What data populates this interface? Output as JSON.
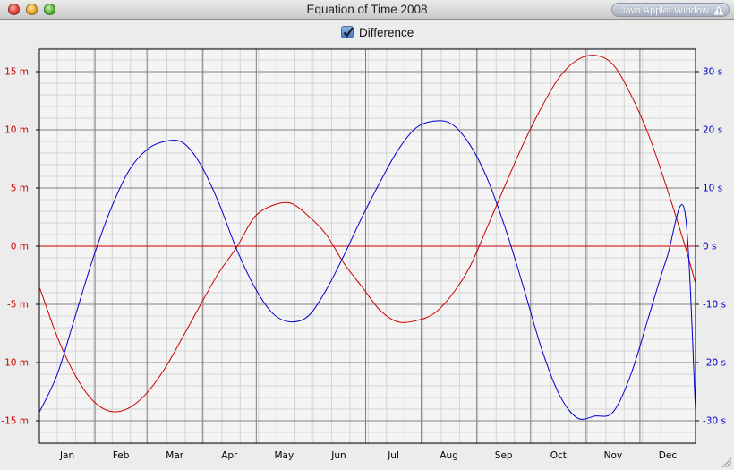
{
  "window": {
    "title": "Equation of Time 2008",
    "badge": "Java Applet Window"
  },
  "checkbox": {
    "label": "Difference",
    "checked": true
  },
  "colors": {
    "main": "#cc0000",
    "difference": "#0000cc",
    "zero_line": "#cc0000",
    "major_grid": "#808080",
    "minor_grid": "#d4d4d4",
    "plot_bg": "#f4f4f4"
  },
  "chart_data": {
    "type": "line",
    "x_ticks": [
      "Jan",
      "Feb",
      "Mar",
      "Apr",
      "May",
      "Jun",
      "Jul",
      "Aug",
      "Sep",
      "Oct",
      "Nov",
      "Dec"
    ],
    "y_left": {
      "ticks": [
        "15 m",
        "10 m",
        "5 m",
        "0 m",
        "-5 m",
        "-10 m",
        "-15 m"
      ],
      "values": [
        15,
        10,
        5,
        0,
        -5,
        -10,
        -15
      ],
      "ylim": [
        -17,
        17
      ],
      "unit": "minutes"
    },
    "y_right": {
      "ticks": [
        "30 s",
        "20 s",
        "10 s",
        "0 s",
        "-10 s",
        "-20 s",
        "-30 s"
      ],
      "values": [
        30,
        20,
        10,
        0,
        -10,
        -20,
        -30
      ],
      "ylim": [
        -34,
        34
      ],
      "unit": "seconds"
    },
    "xlim": [
      0,
      366
    ],
    "series": [
      {
        "axis": "left",
        "color": "#cc0000",
        "x": [
          0,
          10,
          20,
          30,
          40,
          50,
          60,
          70,
          80,
          90,
          100,
          110,
          120,
          130,
          140,
          150,
          160,
          170,
          180,
          190,
          200,
          210,
          220,
          230,
          240,
          250,
          260,
          270,
          280,
          290,
          300,
          310,
          320,
          330,
          340,
          350,
          360,
          366
        ],
        "values": [
          -3.5,
          -7.8,
          -11.1,
          -13.3,
          -14.2,
          -13.9,
          -12.6,
          -10.5,
          -7.8,
          -5.0,
          -2.3,
          -0.1,
          2.5,
          3.5,
          3.7,
          2.6,
          1.0,
          -1.5,
          -3.5,
          -5.5,
          -6.5,
          -6.4,
          -5.8,
          -4.2,
          -1.8,
          1.7,
          5.3,
          8.8,
          11.9,
          14.5,
          16.0,
          16.4,
          15.6,
          13.0,
          9.5,
          5.0,
          0.1,
          -3.2
        ]
      },
      {
        "axis": "right",
        "color": "#0000cc",
        "x": [
          0,
          10,
          20,
          30,
          40,
          50,
          60,
          70,
          80,
          90,
          100,
          110,
          120,
          130,
          140,
          150,
          160,
          170,
          180,
          190,
          200,
          210,
          220,
          230,
          240,
          250,
          260,
          270,
          280,
          290,
          300,
          310,
          320,
          330,
          340,
          350,
          360,
          366
        ],
        "values": [
          -28.5,
          -22.0,
          -12.0,
          -2.0,
          6.5,
          13.0,
          16.6,
          18.0,
          17.8,
          14.0,
          7.5,
          -0.5,
          -7.0,
          -11.5,
          -13.0,
          -12.0,
          -7.5,
          -1.5,
          5.0,
          11.0,
          16.5,
          20.3,
          21.5,
          21.0,
          17.5,
          11.5,
          3.0,
          -7.0,
          -17.5,
          -25.5,
          -29.5,
          -29.2,
          -28.5,
          -22.0,
          -12.0,
          -2.0,
          6.0,
          -28.5
        ]
      }
    ]
  }
}
